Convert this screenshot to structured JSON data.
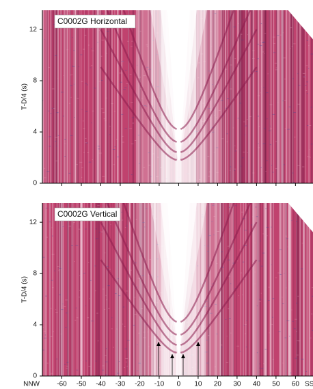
{
  "chart_data": [
    {
      "type": "seismic",
      "title": "C0002G Horizontal",
      "ylabel": "T-D/4 (s)",
      "ylim": [
        0,
        13.5
      ],
      "yticks": [
        0,
        4,
        8,
        12
      ],
      "xlim": [
        -70,
        69
      ],
      "xticks": [
        -60,
        -50,
        -40,
        -30,
        -20,
        -10,
        0,
        10,
        20,
        30,
        40,
        50,
        60
      ],
      "xtick_labels": false,
      "color": "#c0426e"
    },
    {
      "type": "seismic",
      "title": "C0002G Vertical",
      "ylabel": "T-D/4 (s)",
      "ylim": [
        0,
        13.5
      ],
      "yticks": [
        0,
        4,
        8,
        12
      ],
      "xlim": [
        -70,
        69
      ],
      "xticks": [
        -60,
        -50,
        -40,
        -30,
        -20,
        -10,
        0,
        10,
        20,
        30,
        40,
        50,
        60
      ],
      "xtick_labels": true,
      "x_end_labels": [
        "NNW",
        "SS"
      ],
      "color": "#c0426e"
    }
  ]
}
